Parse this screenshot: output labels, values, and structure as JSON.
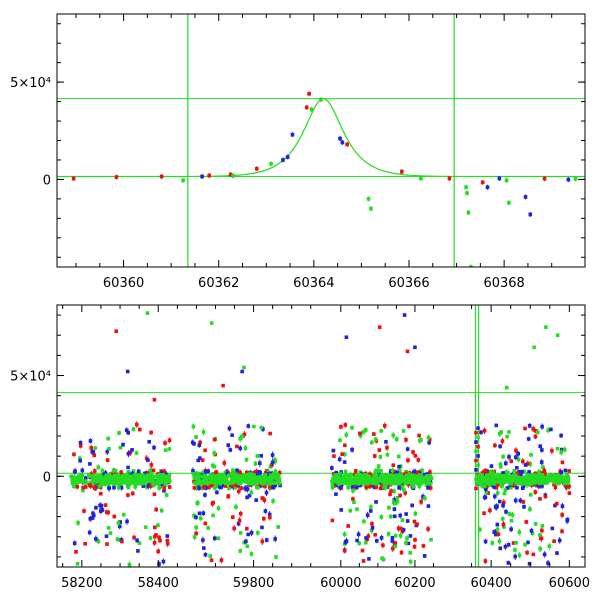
{
  "chart_data": [
    {
      "type": "scatter",
      "panel": "top",
      "xlim": [
        60358.6,
        60369.7
      ],
      "ylim": [
        -45000,
        85000
      ],
      "x_ticks": [
        60360,
        60362,
        60364,
        60366,
        60368
      ],
      "y_ticks": [
        {
          "value": 0,
          "label": "0"
        },
        {
          "value": 50000,
          "label": "5×10⁴"
        }
      ],
      "reference_lines": {
        "vertical": [
          60361.35,
          60366.95
        ],
        "horizontal": [
          1500,
          41500
        ]
      },
      "model_curve": {
        "color": "#22dd22",
        "baseline": 1500,
        "peak_time": 60364.2,
        "peak_height": 40000,
        "width": 0.55
      },
      "series": [
        {
          "color": "#ee1111",
          "points": [
            [
              60358.95,
              500
            ],
            [
              60359.85,
              1200
            ],
            [
              60360.8,
              1500
            ],
            [
              60361.8,
              2000
            ],
            [
              60362.25,
              2500
            ],
            [
              60362.8,
              5500
            ],
            [
              60363.85,
              37000
            ],
            [
              60363.9,
              44000
            ],
            [
              60364.7,
              18000
            ],
            [
              60365.85,
              4000
            ],
            [
              60366.85,
              500
            ],
            [
              60367.55,
              -1500
            ],
            [
              60368.85,
              400
            ]
          ]
        },
        {
          "color": "#2222dd",
          "points": [
            [
              60361.65,
              1500
            ],
            [
              60363.35,
              10000
            ],
            [
              60363.45,
              11500
            ],
            [
              60363.55,
              23000
            ],
            [
              60364.55,
              21000
            ],
            [
              60364.6,
              19000
            ],
            [
              60367.65,
              -4000
            ],
            [
              60367.9,
              500
            ],
            [
              60368.45,
              -9000
            ],
            [
              60368.55,
              -18000
            ],
            [
              60369.35,
              -100
            ]
          ]
        },
        {
          "color": "#22dd22",
          "points": [
            [
              60361.25,
              -500
            ],
            [
              60362.3,
              1800
            ],
            [
              60363.1,
              8000
            ],
            [
              60363.95,
              36000
            ],
            [
              60364.15,
              41000
            ],
            [
              60365.15,
              -10000
            ],
            [
              60365.2,
              -15000
            ],
            [
              60366.25,
              500
            ],
            [
              60367.2,
              -4000
            ],
            [
              60367.22,
              -7000
            ],
            [
              60367.25,
              -17000
            ],
            [
              60367.3,
              -45000
            ],
            [
              60368.05,
              -500
            ],
            [
              60368.1,
              -12000
            ],
            [
              60369.5,
              300
            ]
          ]
        }
      ]
    },
    {
      "type": "scatter",
      "panel": "bottom",
      "broken_axis": true,
      "ylim": [
        -45000,
        85000
      ],
      "y_ticks": [
        {
          "value": 0,
          "label": "0"
        },
        {
          "value": 50000,
          "label": "5×10⁴"
        }
      ],
      "reference_lines": {
        "horizontal": [
          1500,
          41500
        ]
      },
      "segments": [
        {
          "xlim": [
            58135,
            58470
          ],
          "x_ticks": [
            58200,
            58400
          ],
          "data_range": [
            58170,
            58430
          ],
          "cloud": {
            "count": 260,
            "seed": 11
          },
          "highlights": [
            {
              "x": 58290,
              "y": 72000,
              "color": "#ee1111"
            },
            {
              "x": 58320,
              "y": 52000,
              "color": "#2222dd"
            },
            {
              "x": 58372,
              "y": 81000,
              "color": "#22dd22"
            },
            {
              "x": 58390,
              "y": 38000,
              "color": "#ee1111"
            }
          ]
        },
        {
          "xlim": [
            59620,
            59990
          ],
          "x_ticks": [
            59800
          ],
          "data_range": [
            59640,
            59870
          ],
          "cloud": {
            "count": 300,
            "seed": 23
          },
          "highlights": [
            {
              "x": 59690,
              "y": 76000,
              "color": "#22dd22"
            },
            {
              "x": 59770,
              "y": 52000,
              "color": "#2222dd"
            },
            {
              "x": 59775,
              "y": 54000,
              "color": "#22dd22"
            },
            {
              "x": 59720,
              "y": 45000,
              "color": "#ee1111"
            }
          ]
        },
        {
          "xlim": [
            59960,
            60300
          ],
          "x_ticks": [
            60000,
            60200
          ],
          "data_range": [
            59975,
            60245
          ],
          "cloud": {
            "count": 360,
            "seed": 37
          },
          "highlights": [
            {
              "x": 60015,
              "y": 69000,
              "color": "#2222dd"
            },
            {
              "x": 60105,
              "y": 74000,
              "color": "#ee1111"
            },
            {
              "x": 60172,
              "y": 80000,
              "color": "#2222dd"
            },
            {
              "x": 60180,
              "y": 62000,
              "color": "#ee1111"
            },
            {
              "x": 60200,
              "y": 64000,
              "color": "#2222dd"
            }
          ]
        },
        {
          "xlim": [
            60300,
            60640
          ],
          "x_ticks": [
            60400,
            60600
          ],
          "data_range": [
            60365,
            60600
          ],
          "vertical_line": 60364,
          "cloud": {
            "count": 300,
            "seed": 53
          },
          "highlights": [
            {
              "x": 60540,
              "y": 74000,
              "color": "#22dd22"
            },
            {
              "x": 60570,
              "y": 70000,
              "color": "#22dd22"
            },
            {
              "x": 60510,
              "y": 64000,
              "color": "#22dd22"
            },
            {
              "x": 60440,
              "y": 44000,
              "color": "#22dd22"
            }
          ]
        }
      ]
    }
  ]
}
